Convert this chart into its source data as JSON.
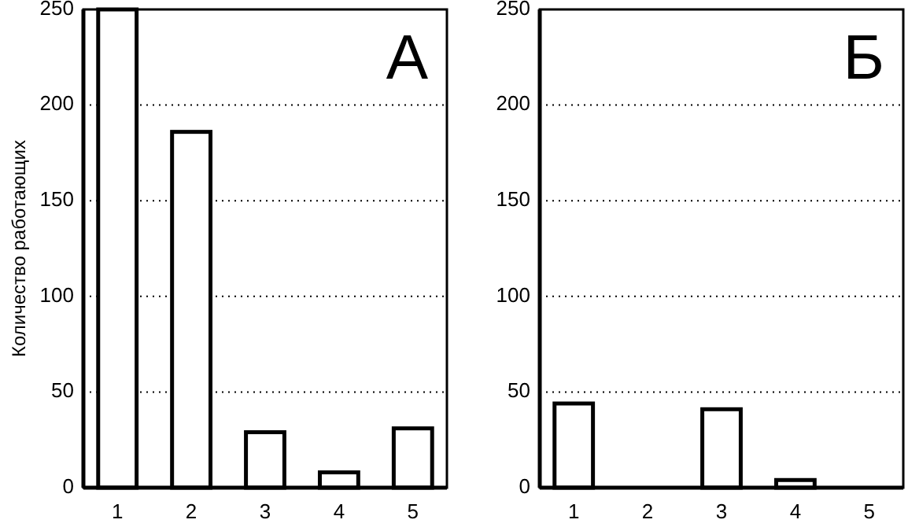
{
  "chart_data": [
    {
      "type": "bar",
      "title": "А",
      "ylabel": "Количество работающих",
      "categories": [
        "1",
        "2",
        "3",
        "4",
        "5"
      ],
      "values": [
        250,
        186,
        29,
        8,
        31
      ],
      "color": "#ffffff",
      "ylim": [
        0,
        250
      ],
      "yticks": [
        0,
        50,
        100,
        150,
        200,
        250
      ],
      "grid": "y"
    },
    {
      "type": "bar",
      "title": "Б",
      "categories": [
        "1",
        "2",
        "3",
        "4",
        "5"
      ],
      "values": [
        44,
        0,
        41,
        4,
        0
      ],
      "color": "#ffffff",
      "ylim": [
        0,
        250
      ],
      "yticks": [
        0,
        50,
        100,
        150,
        200,
        250
      ],
      "grid": "y"
    }
  ]
}
